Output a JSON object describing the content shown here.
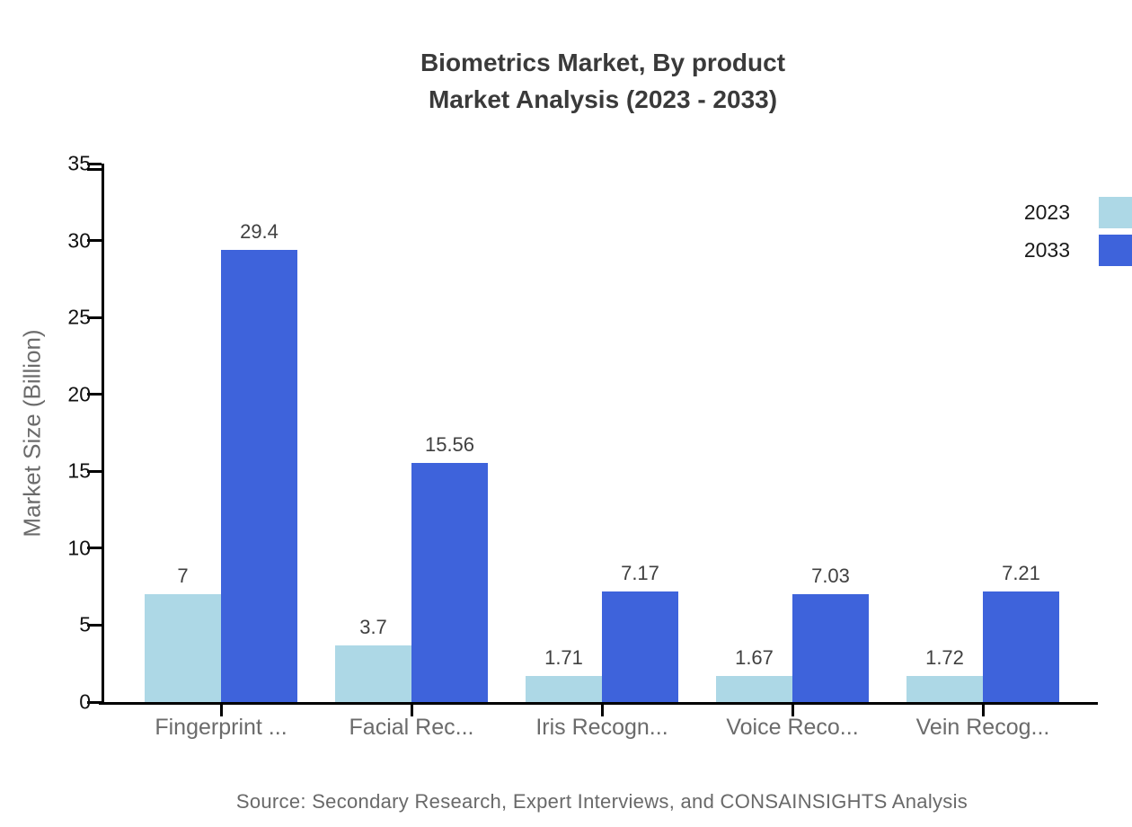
{
  "title": {
    "line1": "Biometrics Market, By product",
    "line2": "Market Analysis (2023 - 2033)"
  },
  "source": "Source: Secondary Research, Expert Interviews, and CONSAINSIGHTS Analysis",
  "chart_data": {
    "type": "bar",
    "title": "Biometrics Market, By product Market Analysis (2023 - 2033)",
    "categories": [
      "Fingerprint ...",
      "Facial Rec...",
      "Iris Recogn...",
      "Voice Reco...",
      "Vein Recog..."
    ],
    "series": [
      {
        "name": "2023",
        "color": "#ADD8E6",
        "values": [
          7,
          3.7,
          1.71,
          1.67,
          1.72
        ]
      },
      {
        "name": "2033",
        "color": "#3E63DB",
        "values": [
          29.4,
          15.56,
          7.17,
          7.03,
          7.21
        ]
      }
    ],
    "xlabel": "",
    "ylabel": "Market Size (Billion)",
    "ylim": [
      0,
      35
    ],
    "yticks": [
      0,
      5,
      10,
      15,
      20,
      25,
      30,
      35
    ],
    "grid": false,
    "value_labels": true,
    "legend_position": "top-right"
  },
  "colors": {
    "background": "#FFFFFF",
    "axis": "#000000",
    "title_text": "#3A3A3A",
    "muted_text": "#6B6B6B",
    "value_label_text": "#404040",
    "series_2023": "#ADD8E6",
    "series_2033": "#3E63DB"
  }
}
